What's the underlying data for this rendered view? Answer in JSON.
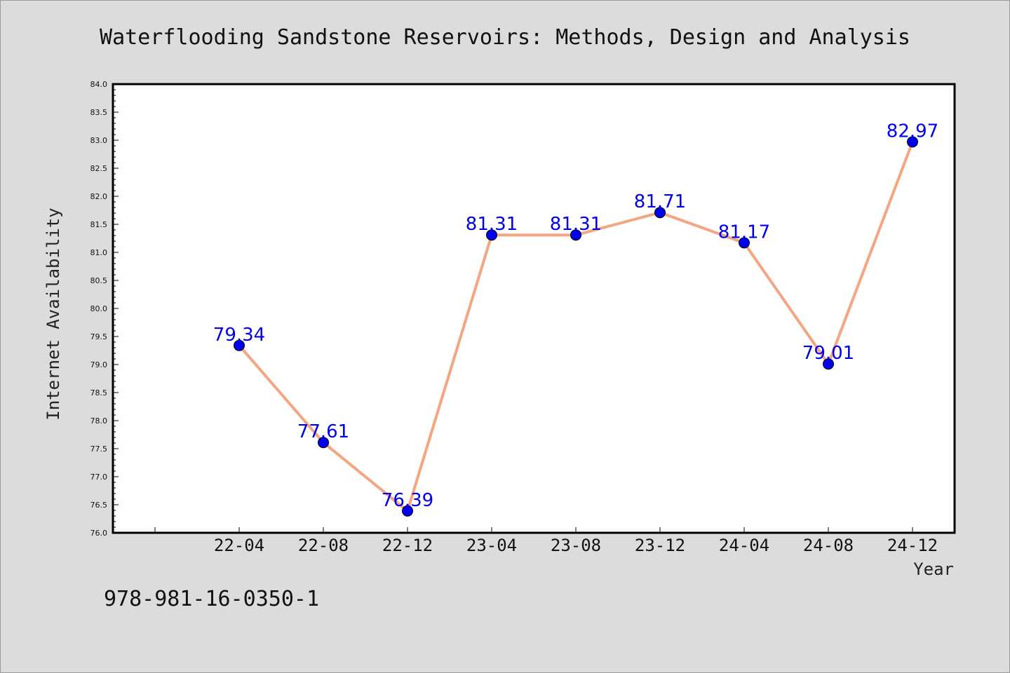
{
  "chart_data": {
    "type": "line",
    "title": "Waterflooding Sandstone Reservoirs: Methods, Design and Analysis",
    "xlabel": "Year",
    "ylabel": "Internet Availability",
    "categories": [
      "22-04",
      "22-08",
      "22-12",
      "23-04",
      "23-08",
      "23-12",
      "24-04",
      "24-08",
      "24-12"
    ],
    "series": [
      {
        "values": [
          79.34,
          77.61,
          76.39,
          81.31,
          81.31,
          81.71,
          81.17,
          79.01,
          82.97
        ]
      }
    ],
    "data_labels": [
      "79.34",
      "77.61",
      "76.39",
      "81.31",
      "81.31",
      "81.71",
      "81.17",
      "79.01",
      "82.97"
    ],
    "ylim": [
      76.0,
      84.0
    ],
    "yticks": [
      "76.0",
      "76.5",
      "77.0",
      "77.5",
      "78.0",
      "78.5",
      "79.0",
      "79.5",
      "80.0",
      "80.5",
      "81.0",
      "81.5",
      "82.0",
      "82.5",
      "83.0",
      "83.5",
      "84.0"
    ],
    "grid": false,
    "legend": "none",
    "colors": {
      "line": "#f4a582",
      "marker": "#0000ee",
      "data_label": "#0000ee",
      "background": "#dcdcdc",
      "plot_background": "#ffffff"
    }
  },
  "footer": {
    "isbn": "978-981-16-0350-1"
  }
}
